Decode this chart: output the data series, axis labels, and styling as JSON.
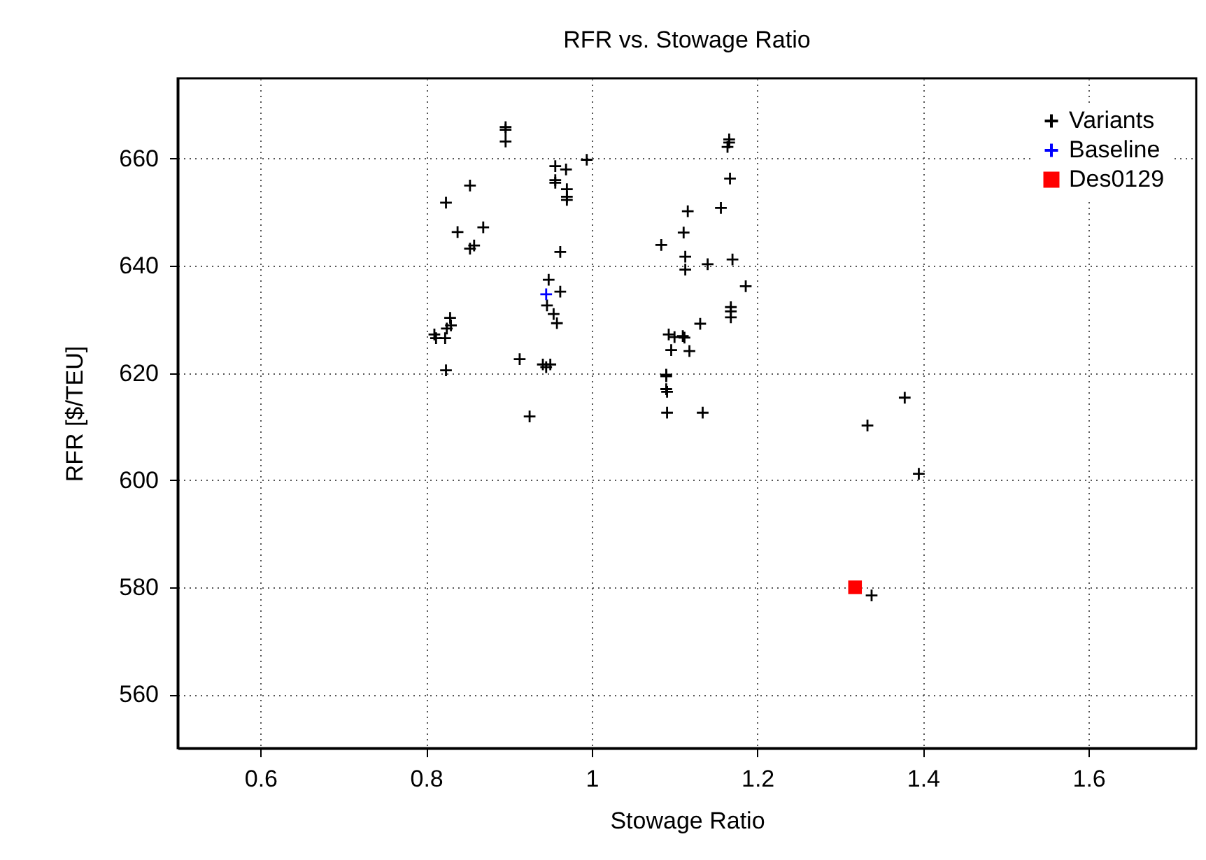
{
  "chart_data": {
    "type": "scatter",
    "title": "RFR vs. Stowage Ratio",
    "xlabel": "Stowage Ratio",
    "ylabel": "RFR [$/TEU]",
    "xlim": [
      0.5,
      1.73
    ],
    "xticks": [
      0.6,
      0.8,
      1,
      1.2,
      1.4,
      1.6
    ],
    "ylim": [
      550,
      675
    ],
    "yticks": [
      560,
      580,
      600,
      620,
      640,
      660
    ],
    "grid": true,
    "legend": "top right",
    "series": [
      {
        "name": "Variants",
        "color": "#000000",
        "marker": "cross",
        "x": [
          0.853,
          0.824,
          0.838,
          0.869,
          0.853,
          0.858,
          0.829,
          0.83,
          0.825,
          0.81,
          0.823,
          0.812,
          0.824,
          0.896,
          0.896,
          0.896,
          0.994,
          0.956,
          0.969,
          0.956,
          0.956,
          0.97,
          0.97,
          0.97,
          0.962,
          0.948,
          0.962,
          0.946,
          0.954,
          0.958,
          0.913,
          0.941,
          0.95,
          0.945,
          0.925,
          1.166,
          1.166,
          1.164,
          1.167,
          1.116,
          1.156,
          1.111,
          1.084,
          1.113,
          1.113,
          1.14,
          1.17,
          1.186,
          1.168,
          1.168,
          1.168,
          1.131,
          1.093,
          1.11,
          1.112,
          1.1,
          1.096,
          1.118,
          1.09,
          1.09,
          1.09,
          1.091,
          1.091,
          1.134,
          1.378,
          1.333,
          1.395,
          1.338
        ],
        "values": [
          655.0,
          651.8,
          646.3,
          647.2,
          643.2,
          643.8,
          630.3,
          628.9,
          628.3,
          627.2,
          626.5,
          626.5,
          620.5,
          665.9,
          665.4,
          663.2,
          659.8,
          658.6,
          658.0,
          656.0,
          655.5,
          654.3,
          652.9,
          652.3,
          642.6,
          637.4,
          635.2,
          632.6,
          631.0,
          629.3,
          622.6,
          621.6,
          621.6,
          621.1,
          611.9,
          663.6,
          663.0,
          662.2,
          656.3,
          650.2,
          650.8,
          646.2,
          643.9,
          641.7,
          639.3,
          640.3,
          641.2,
          636.2,
          632.3,
          631.5,
          630.4,
          629.2,
          627.2,
          626.9,
          626.6,
          626.7,
          624.3,
          624.1,
          619.7,
          619.4,
          617.0,
          616.5,
          612.6,
          612.6,
          615.4,
          610.2,
          601.2,
          578.5
        ]
      },
      {
        "name": "Baseline",
        "color": "#0000ff",
        "marker": "cross",
        "x": [
          0.945
        ],
        "values": [
          634.7
        ]
      },
      {
        "name": "Des0129",
        "color": "#ff0000",
        "marker": "square",
        "x": [
          1.318
        ],
        "values": [
          580.0
        ]
      }
    ]
  }
}
